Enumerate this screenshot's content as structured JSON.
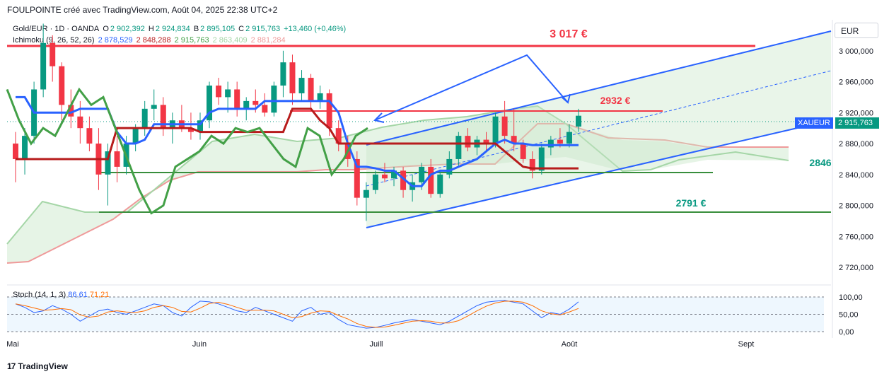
{
  "header": {
    "title": "FOULPOINTE créé avec TradingView.com, Août 04, 2025 22:38 UTC+2"
  },
  "legend": {
    "symbol": "Gold/EUR · 1D · OANDA",
    "o_label": "O",
    "o_value": "2 902,392",
    "h_label": "H",
    "h_value": "2 924,834",
    "b_label": "B",
    "b_value": "2 895,105",
    "c_label": "C",
    "c_value": "2 915,763",
    "change": "+13,460 (+0,46%)",
    "ichimoku_label": "Ichimoku (9, 26, 52, 26)",
    "ichimoku_values": [
      "2 878,529",
      "2 848,288",
      "2 915,763",
      "2 863,409",
      "2 881,284"
    ],
    "ichimoku_colors": [
      "#2962ff",
      "#b71c1c",
      "#43a047",
      "#a5d6a7",
      "#ef9a9a"
    ]
  },
  "stoch": {
    "label": "Stoch (14, 1, 3)",
    "k": "86,61",
    "d": "71,21",
    "k_color": "#2962ff",
    "d_color": "#ff6d00"
  },
  "currency": "EUR",
  "price_tag": {
    "symbol": "XAUEUR",
    "value": "2 915,763",
    "color": "#089981"
  },
  "annotations": {
    "level_top": "3 017 €",
    "level_resist": "2932 €",
    "level_support1": "2846",
    "level_support2": "2791 €"
  },
  "footer": {
    "brand": "TradingView"
  },
  "chart_data": {
    "type": "candlestick",
    "x_labels": [
      "Mai",
      "Juin",
      "Juill",
      "Août",
      "Sept"
    ],
    "y_ticks": [
      "3 000,000",
      "2 960,000",
      "2 920,000",
      "2 880,000",
      "2 840,000",
      "2 800,000",
      "2 760,000",
      "2 720,000"
    ],
    "ylim": [
      2700,
      3040
    ],
    "stoch_ticks": [
      "100,00",
      "50,00",
      "0,00"
    ],
    "horizontal_levels": [
      3017,
      2932,
      2846,
      2791
    ],
    "candles": [
      [
        2880,
        2895,
        2830,
        2860
      ],
      [
        2860,
        2900,
        2840,
        2890
      ],
      [
        2890,
        2960,
        2880,
        2950
      ],
      [
        2950,
        3035,
        2940,
        3010
      ],
      [
        3010,
        3020,
        2960,
        2980
      ],
      [
        2980,
        2985,
        2910,
        2930
      ],
      [
        2930,
        2950,
        2900,
        2915
      ],
      [
        2915,
        2935,
        2880,
        2900
      ],
      [
        2900,
        2915,
        2870,
        2880
      ],
      [
        2880,
        2900,
        2820,
        2840
      ],
      [
        2840,
        2880,
        2800,
        2870
      ],
      [
        2870,
        2890,
        2830,
        2850
      ],
      [
        2850,
        2890,
        2840,
        2880
      ],
      [
        2880,
        2905,
        2870,
        2900
      ],
      [
        2900,
        2935,
        2890,
        2925
      ],
      [
        2925,
        2950,
        2910,
        2930
      ],
      [
        2930,
        2940,
        2890,
        2900
      ],
      [
        2900,
        2920,
        2880,
        2910
      ],
      [
        2910,
        2930,
        2895,
        2900
      ],
      [
        2900,
        2920,
        2885,
        2895
      ],
      [
        2895,
        2920,
        2885,
        2910
      ],
      [
        2910,
        2960,
        2900,
        2955
      ],
      [
        2955,
        2965,
        2930,
        2940
      ],
      [
        2940,
        2960,
        2920,
        2950
      ],
      [
        2950,
        2960,
        2915,
        2925
      ],
      [
        2925,
        2940,
        2910,
        2935
      ],
      [
        2935,
        2950,
        2920,
        2930
      ],
      [
        2930,
        2945,
        2915,
        2920
      ],
      [
        2920,
        2960,
        2915,
        2955
      ],
      [
        2955,
        3000,
        2940,
        2985
      ],
      [
        2985,
        2995,
        2930,
        2945
      ],
      [
        2945,
        2975,
        2935,
        2965
      ],
      [
        2965,
        2970,
        2925,
        2935
      ],
      [
        2935,
        2955,
        2925,
        2945
      ],
      [
        2945,
        2950,
        2890,
        2900
      ],
      [
        2900,
        2910,
        2870,
        2880
      ],
      [
        2880,
        2890,
        2850,
        2860
      ],
      [
        2860,
        2870,
        2800,
        2810
      ],
      [
        2810,
        2830,
        2780,
        2820
      ],
      [
        2820,
        2845,
        2815,
        2840
      ],
      [
        2840,
        2855,
        2830,
        2835
      ],
      [
        2835,
        2850,
        2825,
        2845
      ],
      [
        2845,
        2850,
        2810,
        2820
      ],
      [
        2820,
        2840,
        2805,
        2830
      ],
      [
        2830,
        2855,
        2820,
        2850
      ],
      [
        2850,
        2860,
        2810,
        2815
      ],
      [
        2815,
        2845,
        2810,
        2840
      ],
      [
        2840,
        2870,
        2835,
        2860
      ],
      [
        2860,
        2895,
        2850,
        2890
      ],
      [
        2890,
        2900,
        2870,
        2875
      ],
      [
        2875,
        2890,
        2865,
        2885
      ],
      [
        2885,
        2895,
        2870,
        2880
      ],
      [
        2880,
        2920,
        2875,
        2915
      ],
      [
        2915,
        2935,
        2880,
        2890
      ],
      [
        2890,
        2925,
        2870,
        2880
      ],
      [
        2880,
        2885,
        2855,
        2860
      ],
      [
        2860,
        2870,
        2835,
        2845
      ],
      [
        2845,
        2880,
        2840,
        2875
      ],
      [
        2875,
        2890,
        2865,
        2885
      ],
      [
        2885,
        2900,
        2875,
        2880
      ],
      [
        2880,
        2905,
        2875,
        2895
      ],
      [
        2902,
        2925,
        2895,
        2916
      ]
    ],
    "series": [
      {
        "name": "Tenkan",
        "color": "#2962ff"
      },
      {
        "name": "Kijun",
        "color": "#b71c1c"
      },
      {
        "name": "Chikou",
        "color": "#43a047"
      },
      {
        "name": "Senkou A",
        "color": "#a5d6a7"
      },
      {
        "name": "Senkou B",
        "color": "#ef9a9a"
      }
    ]
  }
}
